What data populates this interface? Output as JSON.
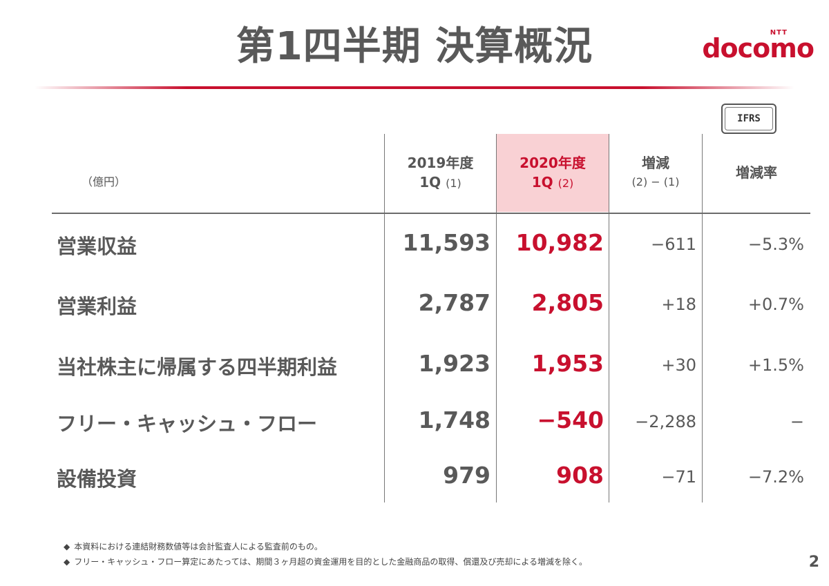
{
  "title": "第1四半期 決算概況",
  "logo": {
    "ntt": "NTT",
    "wordmark": "docomo",
    "color": "#c8102e"
  },
  "badge": "IFRS",
  "unit": "（億円）",
  "headers": {
    "fy2019_line1": "2019年度",
    "fy2019_line2": "1Q",
    "fy2019_tag": "(1)",
    "fy2020_line1": "2020年度",
    "fy2020_line2": "1Q",
    "fy2020_tag": "(2)",
    "diff_line1": "増減",
    "diff_line2": "(2) − (1)",
    "rate": "増減率"
  },
  "rows": [
    {
      "label": "営業収益",
      "fy2019": "11,593",
      "fy2020": "10,982",
      "diff": "−611",
      "rate": "−5.3%"
    },
    {
      "label": "営業利益",
      "fy2019": "2,787",
      "fy2020": "2,805",
      "diff": "+18",
      "rate": "+0.7%"
    },
    {
      "label": "当社株主に帰属する四半期利益",
      "fy2019": "1,923",
      "fy2020": "1,953",
      "diff": "+30",
      "rate": "+1.5%"
    },
    {
      "label": "フリー・キャッシュ・フロー",
      "fy2019": "1,748",
      "fy2020": "−540",
      "diff": "−2,288",
      "rate": "−"
    },
    {
      "label": "設備投資",
      "fy2019": "979",
      "fy2020": "908",
      "diff": "−71",
      "rate": "−7.2%"
    }
  ],
  "notes": [
    "本資料における連結財務数値等は会計監査人による監査前のもの。",
    "フリー・キャッシュ・フロー算定にあたっては、期間３ヶ月超の資金運用を目的とした金融商品の取得、償還及び売却による増減を除く。"
  ],
  "note_bullet": "◆",
  "page_number": "2",
  "colors": {
    "accent": "#c8102e",
    "highlight": "#f9d1d4",
    "text": "#595959"
  }
}
